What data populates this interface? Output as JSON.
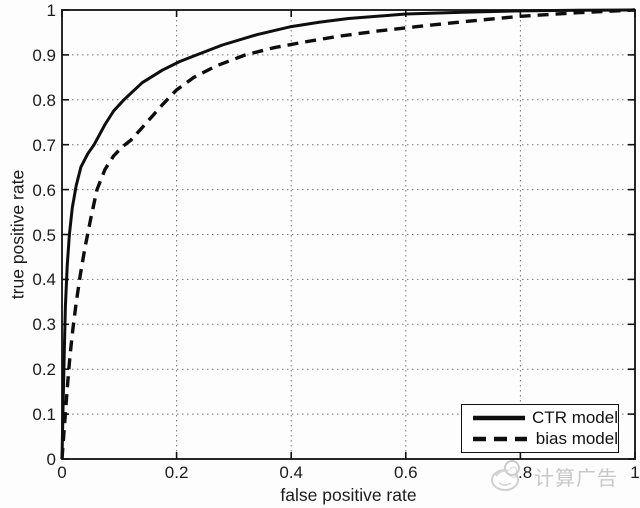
{
  "chart_data": {
    "type": "line",
    "xlabel": "false positive rate",
    "ylabel": "true positive rate",
    "xlim": [
      0,
      1
    ],
    "ylim": [
      0,
      1
    ],
    "grid": "dotted",
    "x_tick_values": [
      0,
      0.2,
      0.4,
      0.6,
      0.8,
      1
    ],
    "x_ticks": [
      "0",
      "0.2",
      "0.4",
      "0.6",
      "0.8",
      "1"
    ],
    "y_tick_values": [
      0,
      0.1,
      0.2,
      0.3,
      0.4,
      0.5,
      0.6,
      0.7,
      0.8,
      0.9,
      1
    ],
    "y_ticks": [
      "0",
      "0.1",
      "0.2",
      "0.3",
      "0.4",
      "0.5",
      "0.6",
      "0.7",
      "0.8",
      "0.9",
      "1"
    ],
    "legend": {
      "position": "lower-right",
      "items": [
        {
          "label": "CTR model",
          "line": "solid"
        },
        {
          "label": "bias model",
          "line": "dashed"
        }
      ]
    },
    "series": [
      {
        "name": "CTR model",
        "style": "solid",
        "points": [
          [
            0,
            0
          ],
          [
            0.002,
            0.12
          ],
          [
            0.004,
            0.24
          ],
          [
            0.006,
            0.34
          ],
          [
            0.009,
            0.43
          ],
          [
            0.013,
            0.5
          ],
          [
            0.018,
            0.56
          ],
          [
            0.025,
            0.61
          ],
          [
            0.033,
            0.65
          ],
          [
            0.045,
            0.68
          ],
          [
            0.056,
            0.7
          ],
          [
            0.075,
            0.745
          ],
          [
            0.09,
            0.775
          ],
          [
            0.108,
            0.8
          ],
          [
            0.14,
            0.838
          ],
          [
            0.175,
            0.866
          ],
          [
            0.205,
            0.885
          ],
          [
            0.225,
            0.895
          ],
          [
            0.28,
            0.922
          ],
          [
            0.34,
            0.945
          ],
          [
            0.4,
            0.963
          ],
          [
            0.45,
            0.973
          ],
          [
            0.5,
            0.981
          ],
          [
            0.6,
            0.991
          ],
          [
            0.7,
            0.995
          ],
          [
            0.8,
            0.998
          ],
          [
            0.9,
            0.9993
          ],
          [
            1,
            1
          ]
        ]
      },
      {
        "name": "bias model",
        "style": "dashed",
        "points": [
          [
            0,
            0
          ],
          [
            0.004,
            0.07
          ],
          [
            0.007,
            0.12
          ],
          [
            0.01,
            0.17
          ],
          [
            0.014,
            0.23
          ],
          [
            0.019,
            0.29
          ],
          [
            0.025,
            0.35
          ],
          [
            0.032,
            0.41
          ],
          [
            0.04,
            0.47
          ],
          [
            0.05,
            0.535
          ],
          [
            0.061,
            0.6
          ],
          [
            0.075,
            0.645
          ],
          [
            0.09,
            0.675
          ],
          [
            0.105,
            0.695
          ],
          [
            0.12,
            0.71
          ],
          [
            0.14,
            0.738
          ],
          [
            0.16,
            0.767
          ],
          [
            0.176,
            0.79
          ],
          [
            0.2,
            0.822
          ],
          [
            0.23,
            0.85
          ],
          [
            0.27,
            0.876
          ],
          [
            0.32,
            0.9
          ],
          [
            0.37,
            0.916
          ],
          [
            0.42,
            0.928
          ],
          [
            0.48,
            0.941
          ],
          [
            0.55,
            0.953
          ],
          [
            0.62,
            0.963
          ],
          [
            0.7,
            0.974
          ],
          [
            0.8,
            0.986
          ],
          [
            0.9,
            0.994
          ],
          [
            1,
            1
          ]
        ]
      }
    ],
    "colors": {
      "curve": "#0e0e0e",
      "grid": "#767676",
      "axis": "#111111"
    }
  },
  "watermark": {
    "text": "计算广告",
    "icon": "doodle-logo",
    "color": "#c8c8c8"
  }
}
